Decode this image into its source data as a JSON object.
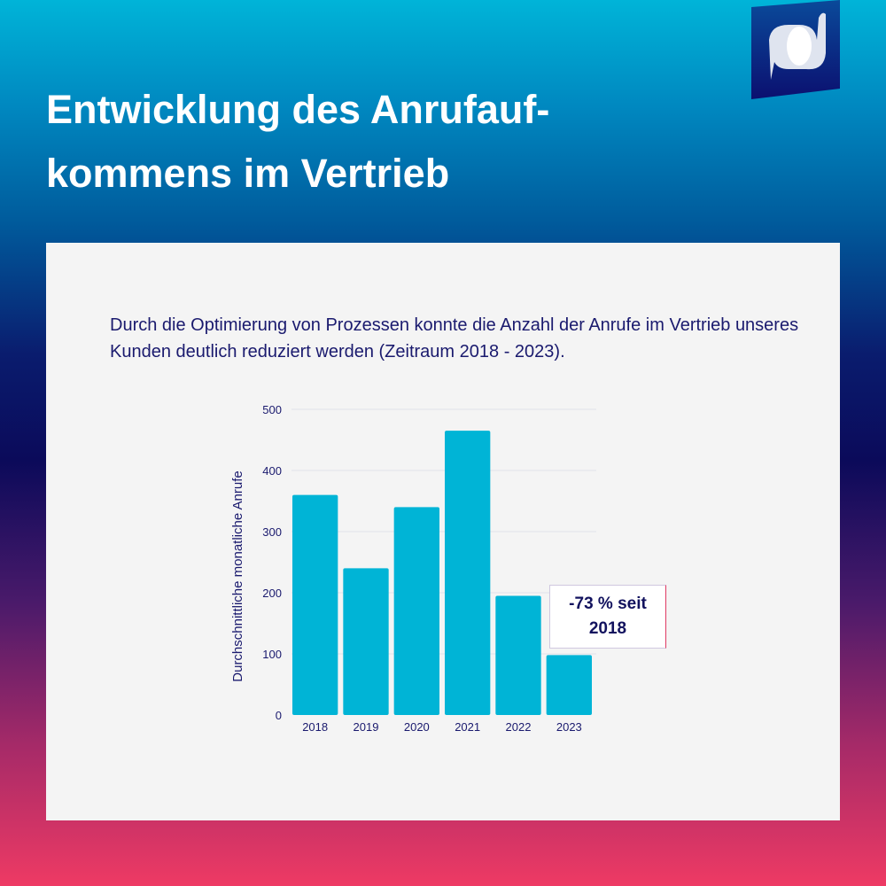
{
  "header": {
    "title": "Entwicklung des Anrufauf-\nkommens im Vertrieb"
  },
  "description": "Durch die Optimierung von Prozessen konnte die Anzahl der Anrufe im Vertrieb unseres Kunden deutlich reduziert werden (Zeitraum 2018 - 2023).",
  "callout": {
    "text": "-73 % seit 2018"
  },
  "colors": {
    "bar": "#00b4d6",
    "text": "#1a1a6e",
    "accent": "#e03a64"
  },
  "chart_data": {
    "type": "bar",
    "title": "",
    "xlabel": "",
    "ylabel": "Durchschnittliche monatliche Anrufe",
    "categories": [
      "2018",
      "2019",
      "2020",
      "2021",
      "2022",
      "2023"
    ],
    "values": [
      360,
      240,
      340,
      465,
      195,
      98
    ],
    "ylim": [
      0,
      500
    ],
    "yticks": [
      0,
      100,
      200,
      300,
      400,
      500
    ],
    "grid": true,
    "legend": "none"
  }
}
